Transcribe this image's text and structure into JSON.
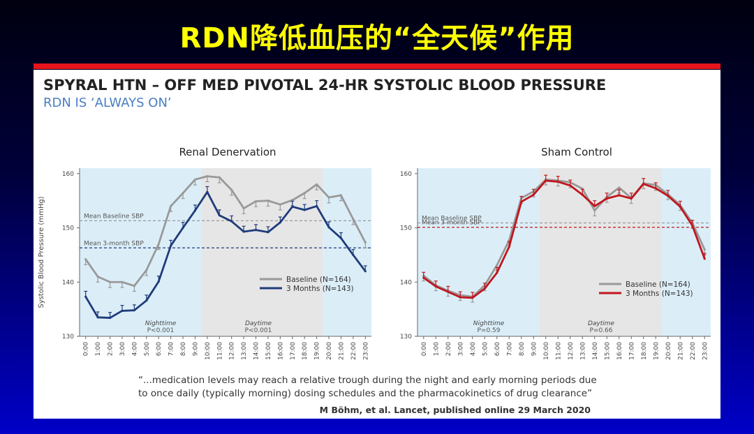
{
  "slide": {
    "title": "RDN降低血压的“全天候”作用"
  },
  "panel": {
    "title": "SPYRAL HTN – OFF MED PIVOTAL 24-HR SYSTOLIC BLOOD PRESSURE",
    "subtitle": "RDN IS ‘ALWAYS ON’",
    "quote_line1": "“...medication levels may reach a relative trough during the night and early morning periods due",
    "quote_line2": "to once daily (typically morning) dosing schedules and the pharmacokinetics of drug clearance”",
    "citation": "M Böhm, et al. Lancet, published online 29 March 2020"
  },
  "colors": {
    "baseline": "#999999",
    "rdn_3m": "#1f3b7a",
    "sham_3m": "#c0161e",
    "night_shade": "#dbeef8",
    "day_shade": "#e6e6e6"
  },
  "chart_data": [
    {
      "type": "line",
      "title": "Renal Denervation",
      "ylabel": "Systolic  Blood Pressure (mmHg)",
      "ylim": [
        130,
        161
      ],
      "yticks": [
        130,
        140,
        150,
        160
      ],
      "categories": [
        "0:00",
        "1:00",
        "2:00",
        "3:00",
        "4:00",
        "5:00",
        "6:00",
        "7:00",
        "8:00",
        "9:00",
        "10:00",
        "11:00",
        "12:00",
        "13:00",
        "14:00",
        "15:00",
        "16:00",
        "17:00",
        "18:00",
        "19:00",
        "20:00",
        "21:00",
        "22:00",
        "23:00"
      ],
      "series": [
        {
          "name": "Baseline (N=164)",
          "color": "#999999",
          "values": [
            144.2,
            141,
            140,
            140,
            139.3,
            142.2,
            147,
            154,
            156.4,
            158.9,
            159.5,
            159.3,
            157,
            153.6,
            154.9,
            155,
            154.3,
            155.1,
            156.4,
            158,
            155.6,
            156,
            151.6,
            147.3
          ]
        },
        {
          "name": "3 Months (N=143)",
          "color": "#1f3b7a",
          "values": [
            137.3,
            133.5,
            133.4,
            134.7,
            134.8,
            136.6,
            140.1,
            146.7,
            150,
            153.2,
            156.6,
            152.3,
            151.2,
            149.3,
            149.6,
            149.2,
            151,
            153.9,
            153.3,
            154,
            150.1,
            148.1,
            145,
            142
          ]
        }
      ],
      "reference_lines": [
        {
          "label": "Mean Baseline SBP",
          "value": 151.3,
          "color": "#999999"
        },
        {
          "label": "Mean 3-month SBP",
          "value": 146.3,
          "color": "#1f3b7a"
        }
      ],
      "annotations": [
        {
          "text": "Nighttime",
          "sub": "P<0.001"
        },
        {
          "text": "Daytime",
          "sub": "P<0.001"
        }
      ]
    },
    {
      "type": "line",
      "title": "Sham Control",
      "ylim": [
        130,
        161
      ],
      "yticks": [
        130,
        140,
        150,
        160
      ],
      "categories": [
        "0:00",
        "1:00",
        "2:00",
        "3:00",
        "4:00",
        "5:00",
        "6:00",
        "7:00",
        "8:00",
        "9:00",
        "10:00",
        "11:00",
        "12:00",
        "13:00",
        "14:00",
        "15:00",
        "16:00",
        "17:00",
        "18:00",
        "19:00",
        "20:00",
        "21:00",
        "22:00",
        "23:00"
      ],
      "series": [
        {
          "name": "Baseline (N=164)",
          "color": "#999999",
          "values": [
            141.2,
            139.4,
            138.4,
            137.6,
            137.3,
            139.4,
            143.1,
            147.7,
            155.5,
            156.7,
            158.9,
            158.7,
            158.4,
            157.2,
            153.2,
            155.7,
            157.4,
            155.5,
            158.2,
            157.9,
            156.2,
            154.2,
            150.9,
            146
          ]
        },
        {
          "name": "3 Months (N=143)",
          "color": "#c0161e",
          "values": [
            140.8,
            139.2,
            138.2,
            137.2,
            137.1,
            138.8,
            141.7,
            146.5,
            154.8,
            156.1,
            158.7,
            158.5,
            157.8,
            156.1,
            154,
            155.4,
            156,
            155.4,
            158.1,
            157.3,
            155.9,
            153.9,
            150.4,
            144.3
          ]
        }
      ],
      "reference_lines": [
        {
          "label": "Mean Baseline SBP",
          "value": 150.9,
          "color": "#999999"
        },
        {
          "label": "Mean 3-month SBP",
          "value": 150.1,
          "color": "#c0161e"
        }
      ],
      "annotations": [
        {
          "text": "Nighttime",
          "sub": "P=0.59"
        },
        {
          "text": "Daytime",
          "sub": "P=0.66"
        }
      ]
    }
  ]
}
